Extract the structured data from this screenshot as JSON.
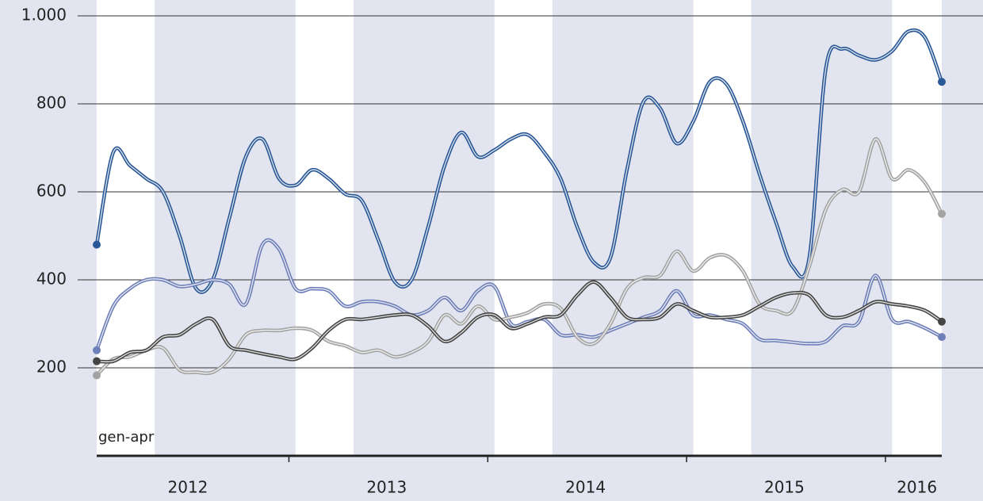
{
  "chart_data": {
    "type": "line",
    "annotation": "gen-apr",
    "years": [
      "2012",
      "2013",
      "2014",
      "2015",
      "2016"
    ],
    "ylim": [
      0,
      1000
    ],
    "yticks": [
      200,
      400,
      600,
      800,
      {
        "value": 1000,
        "label": "1.000"
      }
    ],
    "grid": true,
    "series": [
      {
        "color": "#2a5896",
        "values": [
          480,
          690,
          660,
          630,
          600,
          500,
          380,
          400,
          540,
          680,
          720,
          630,
          615,
          650,
          630,
          595,
          580,
          490,
          395,
          400,
          520,
          660,
          735,
          680,
          695,
          720,
          730,
          690,
          630,
          520,
          440,
          450,
          650,
          805,
          790,
          710,
          760,
          850,
          845,
          760,
          640,
          530,
          430,
          450,
          880,
          925,
          910,
          900,
          920,
          965,
          950,
          850
        ]
      },
      {
        "color": "#6f7fb8",
        "values": [
          240,
          340,
          380,
          400,
          400,
          385,
          390,
          400,
          390,
          345,
          480,
          470,
          380,
          380,
          375,
          340,
          350,
          350,
          340,
          320,
          330,
          360,
          330,
          375,
          385,
          300,
          305,
          310,
          275,
          275,
          270,
          285,
          300,
          315,
          330,
          375,
          320,
          320,
          310,
          300,
          265,
          262,
          258,
          255,
          260,
          295,
          305,
          410,
          310,
          305,
          290,
          270
        ]
      },
      {
        "color": "#a3a3a3",
        "values": [
          183,
          220,
          225,
          240,
          245,
          195,
          190,
          190,
          220,
          275,
          285,
          285,
          290,
          285,
          260,
          250,
          235,
          240,
          225,
          235,
          260,
          320,
          300,
          340,
          310,
          315,
          325,
          345,
          335,
          270,
          255,
          300,
          380,
          405,
          410,
          465,
          420,
          450,
          455,
          420,
          345,
          330,
          330,
          430,
          560,
          605,
          600,
          720,
          630,
          650,
          620,
          550
        ]
      },
      {
        "color": "#454545",
        "values": [
          215,
          215,
          235,
          240,
          270,
          275,
          300,
          310,
          250,
          240,
          232,
          225,
          220,
          245,
          285,
          310,
          310,
          315,
          320,
          320,
          295,
          260,
          280,
          315,
          320,
          290,
          300,
          315,
          320,
          365,
          395,
          360,
          315,
          310,
          315,
          345,
          330,
          315,
          315,
          320,
          340,
          360,
          370,
          365,
          320,
          315,
          330,
          350,
          345,
          340,
          330,
          305
        ]
      }
    ]
  }
}
